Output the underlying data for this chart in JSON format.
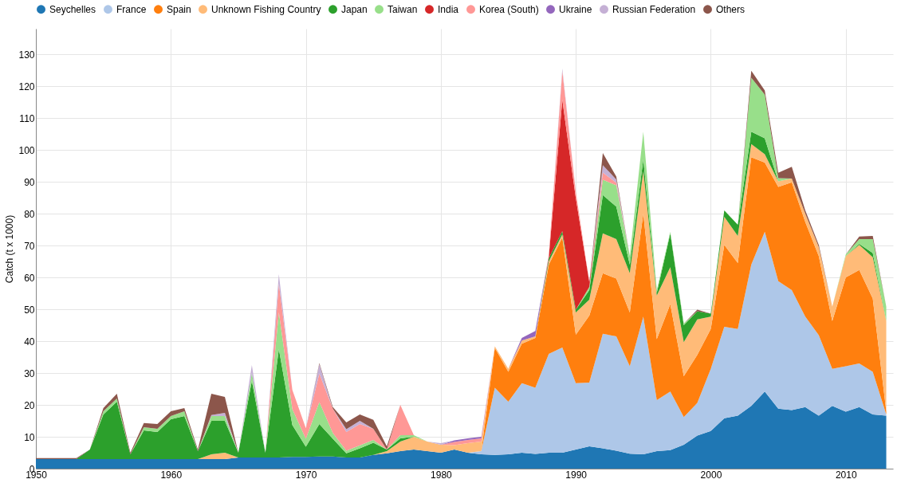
{
  "chart_data": {
    "type": "area",
    "stacked": true,
    "ylabel": "Catch (t x 1000)",
    "x": [
      1950,
      1951,
      1952,
      1953,
      1954,
      1955,
      1956,
      1957,
      1958,
      1959,
      1960,
      1961,
      1962,
      1963,
      1964,
      1965,
      1966,
      1967,
      1968,
      1969,
      1970,
      1971,
      1972,
      1973,
      1974,
      1975,
      1976,
      1977,
      1978,
      1979,
      1980,
      1981,
      1982,
      1983,
      1984,
      1985,
      1986,
      1987,
      1988,
      1989,
      1990,
      1991,
      1992,
      1993,
      1994,
      1995,
      1996,
      1997,
      1998,
      1999,
      2000,
      2001,
      2002,
      2003,
      2004,
      2005,
      2006,
      2007,
      2008,
      2009,
      2010,
      2011,
      2012,
      2013
    ],
    "series": [
      {
        "name": "Seychelles",
        "color": "#1f77b4",
        "values": [
          3,
          3,
          3,
          3,
          3,
          3,
          3,
          3,
          3,
          3,
          3,
          3,
          3,
          3,
          3,
          3.5,
          3.5,
          3.5,
          3.5,
          3.7,
          3.7,
          3.8,
          3.8,
          3.5,
          3.5,
          4.3,
          4.8,
          5.5,
          6,
          5.5,
          5,
          6,
          5,
          4.5,
          4.3,
          4.5,
          5,
          4.6,
          5,
          5,
          6,
          7,
          6.4,
          5.6,
          4.7,
          4.5,
          5.5,
          5.8,
          7.5,
          10.4,
          11.8,
          15.8,
          16.6,
          19.7,
          24.2,
          18.8,
          18.4,
          19.3,
          16.6,
          19.7,
          17.9,
          19.3,
          17,
          16.6
        ]
      },
      {
        "name": "France",
        "color": "#aec7e8",
        "values": [
          null,
          null,
          null,
          null,
          null,
          null,
          null,
          null,
          null,
          null,
          null,
          null,
          null,
          null,
          null,
          null,
          null,
          null,
          null,
          null,
          null,
          null,
          null,
          null,
          null,
          null,
          null,
          null,
          null,
          null,
          null,
          null,
          0,
          1,
          21.1,
          16.5,
          21.8,
          20.8,
          31,
          33,
          20.8,
          20,
          35.9,
          35.9,
          27.4,
          43.2,
          16,
          18.4,
          8.7,
          10.2,
          19.5,
          28.7,
          27.2,
          44.3,
          50.1,
          40,
          37.6,
          28.4,
          25.3,
          11.6,
          14.2,
          13.7,
          13.4,
          0.4
        ]
      },
      {
        "name": "Spain",
        "color": "#ff7f0e",
        "values": [
          null,
          null,
          null,
          null,
          null,
          null,
          null,
          null,
          null,
          null,
          null,
          null,
          null,
          null,
          null,
          null,
          null,
          null,
          null,
          null,
          null,
          null,
          null,
          null,
          null,
          null,
          null,
          null,
          null,
          null,
          null,
          null,
          null,
          0,
          12.5,
          9.4,
          12.4,
          15.6,
          28,
          34.5,
          15.2,
          21,
          19,
          18.1,
          16.9,
          32.3,
          19.1,
          27.4,
          12.8,
          15.1,
          12.5,
          25.7,
          20.7,
          33.7,
          21.7,
          29.6,
          33.8,
          29.7,
          24.8,
          15,
          27.9,
          29.3,
          23,
          1
        ]
      },
      {
        "name": "Unknown Fishing Country",
        "color": "#ffbb78",
        "values": [
          null,
          null,
          null,
          null,
          null,
          null,
          null,
          null,
          null,
          null,
          null,
          null,
          0,
          1.5,
          2,
          0,
          null,
          null,
          null,
          null,
          null,
          null,
          null,
          null,
          null,
          0,
          0.7,
          3,
          4,
          3,
          2.5,
          1.4,
          3,
          3,
          0.5,
          0.9,
          1,
          0.5,
          1,
          1,
          7,
          5,
          12.5,
          12.4,
          12.3,
          13.3,
          13.7,
          11.6,
          10.7,
          11.1,
          3.9,
          8.8,
          8.5,
          4.1,
          2.6,
          1.7,
          1.2,
          2.6,
          2.8,
          4.5,
          6.7,
          7.9,
          12.9,
          28.3
        ]
      },
      {
        "name": "Japan",
        "color": "#2ca02c",
        "values": [
          null,
          null,
          null,
          0,
          3,
          14,
          18,
          1.5,
          9,
          8.5,
          12.5,
          13.5,
          2.5,
          10.5,
          10,
          1.5,
          24,
          1.5,
          34,
          10,
          3.2,
          10.2,
          5.6,
          1.3,
          2.9,
          3.8,
          0.5,
          1,
          0,
          null,
          null,
          null,
          null,
          null,
          null,
          null,
          null,
          0,
          1,
          1,
          0.9,
          3,
          12,
          10.2,
          2.7,
          3.7,
          0.9,
          10.6,
          5.3,
          2.6,
          0.9,
          2,
          3.5,
          3.9,
          5,
          0,
          null,
          null,
          null,
          null,
          0,
          0.3,
          1.3,
          0
        ]
      },
      {
        "name": "Taiwan",
        "color": "#98df8a",
        "values": [
          null,
          null,
          null,
          null,
          0,
          1,
          1,
          0,
          1,
          1,
          1,
          1.5,
          0,
          1.5,
          1.5,
          0,
          2.5,
          0,
          11.5,
          5,
          2.5,
          6.9,
          1.8,
          0.8,
          0.9,
          0.9,
          0,
          1,
          0.5,
          0,
          null,
          null,
          null,
          null,
          null,
          null,
          null,
          null,
          null,
          null,
          0,
          1,
          4.8,
          6.7,
          2.7,
          8.7,
          0.8,
          0.5,
          0.5,
          0,
          null,
          null,
          0,
          16.9,
          13.7,
          1,
          0,
          null,
          null,
          0,
          0.5,
          1.5,
          4.4,
          4.5
        ]
      },
      {
        "name": "India",
        "color": "#d62728",
        "values": [
          null,
          null,
          null,
          null,
          null,
          null,
          null,
          null,
          null,
          null,
          null,
          null,
          null,
          null,
          null,
          null,
          null,
          null,
          null,
          null,
          null,
          null,
          null,
          null,
          null,
          null,
          null,
          null,
          null,
          null,
          null,
          null,
          null,
          null,
          null,
          null,
          null,
          0,
          0.5,
          41.2,
          35,
          1.5,
          0,
          null,
          null,
          null,
          null,
          null,
          null,
          null,
          null,
          null,
          null,
          null,
          null,
          null,
          null,
          null,
          null,
          null,
          null,
          null,
          null,
          null
        ]
      },
      {
        "name": "Korea (South)",
        "color": "#ff9896",
        "values": [
          null,
          null,
          null,
          null,
          null,
          null,
          null,
          null,
          null,
          null,
          null,
          null,
          null,
          null,
          null,
          null,
          null,
          0,
          9,
          6,
          3.3,
          8.9,
          7.6,
          5.9,
          6.7,
          3.5,
          0,
          9.5,
          0,
          null,
          0,
          1,
          1,
          1,
          0,
          null,
          null,
          0,
          0.5,
          9,
          2,
          0,
          2.3,
          0.8,
          0,
          null,
          null,
          null,
          null,
          null,
          null,
          null,
          null,
          null,
          null,
          null,
          null,
          null,
          null,
          null,
          null,
          null,
          null,
          null
        ]
      },
      {
        "name": "Ukraine",
        "color": "#9467bd",
        "values": [
          null,
          null,
          null,
          null,
          null,
          null,
          null,
          null,
          null,
          null,
          null,
          null,
          null,
          null,
          null,
          null,
          null,
          null,
          null,
          null,
          null,
          null,
          null,
          null,
          null,
          null,
          null,
          null,
          null,
          null,
          0,
          0.5,
          0.5,
          0.5,
          0,
          0,
          0.8,
          1.7,
          0,
          null,
          null,
          null,
          null,
          null,
          null,
          null,
          null,
          null,
          null,
          null,
          null,
          null,
          null,
          null,
          null,
          null,
          null,
          null,
          null,
          null,
          null,
          null,
          null,
          null
        ]
      },
      {
        "name": "Russian Federation",
        "color": "#c5b0d5",
        "values": [
          null,
          null,
          null,
          null,
          null,
          null,
          null,
          null,
          null,
          null,
          null,
          null,
          0,
          0.3,
          1,
          0,
          2.5,
          0,
          3,
          0,
          0,
          3,
          0,
          0.9,
          1,
          0,
          null,
          null,
          null,
          0,
          0.5,
          0,
          null,
          null,
          null,
          null,
          null,
          null,
          0,
          0.8,
          0,
          0,
          2.3,
          1,
          0,
          null,
          null,
          null,
          null,
          null,
          null,
          null,
          null,
          null,
          null,
          null,
          null,
          null,
          null,
          null,
          null,
          null,
          null,
          null
        ]
      },
      {
        "name": "Others",
        "color": "#8c564b",
        "values": [
          0.3,
          0.3,
          0.3,
          0.3,
          0,
          1,
          1.5,
          0.5,
          1.3,
          1.5,
          1.5,
          1,
          0.5,
          6.7,
          5,
          0,
          null,
          null,
          null,
          null,
          0,
          0.3,
          0.5,
          2.1,
          2,
          2.8,
          1,
          0,
          null,
          null,
          null,
          null,
          null,
          null,
          null,
          null,
          null,
          null,
          null,
          null,
          null,
          0,
          3.8,
          0.9,
          0,
          null,
          null,
          null,
          0,
          0.5,
          0,
          null,
          0,
          2.2,
          1.3,
          1.7,
          3.7,
          1,
          0.7,
          0,
          0,
          0.8,
          1,
          0
        ]
      }
    ],
    "xlim": [
      1950,
      2013.5
    ],
    "xticks": [
      1950,
      1960,
      1970,
      1980,
      1990,
      2000,
      2010
    ],
    "ylim": [
      0,
      138
    ],
    "yticks": [
      0,
      10,
      20,
      30,
      40,
      50,
      60,
      70,
      80,
      90,
      100,
      110,
      120,
      130
    ],
    "grid": true,
    "legend": "top",
    "marker": "none"
  }
}
